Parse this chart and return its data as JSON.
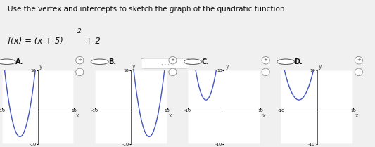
{
  "title_text": "Use the vertex and intercepts to sketch the graph of the quadratic function.",
  "formula_text": "f(x) = (x + 5)",
  "formula_sup": "2",
  "formula_tail": " + 2",
  "bg_color": "#f0f0f0",
  "panel_bg": "#ffffff",
  "graphs": [
    {
      "label": "A.",
      "vx": -5,
      "vy": -8,
      "scale": 1.0
    },
    {
      "label": "B.",
      "vx": 5,
      "vy": -8,
      "scale": 1.0
    },
    {
      "label": "C.",
      "vx": -5,
      "vy": 2,
      "scale": 1.0
    },
    {
      "label": "D.",
      "vx": -5,
      "vy": 2,
      "scale": 0.5
    }
  ],
  "curve_color": "#4455bb",
  "axis_color": "#444444",
  "grid_color": "#cccccc",
  "text_color": "#111111",
  "font_size_title": 7.5,
  "font_size_formula": 8.5,
  "font_size_label": 7,
  "font_size_tick": 4.5
}
